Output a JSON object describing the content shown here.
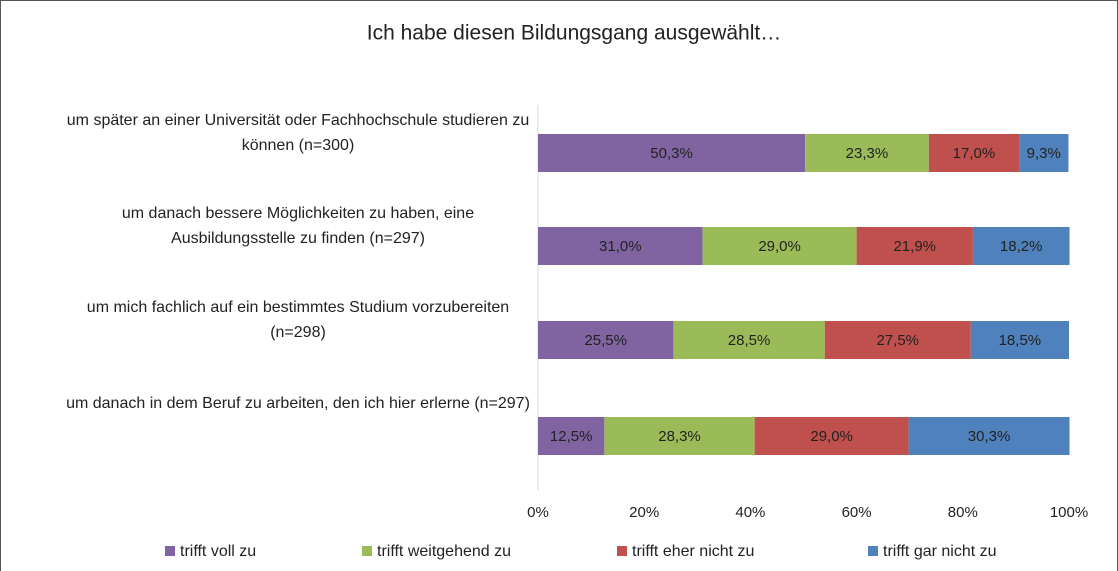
{
  "chart_data": {
    "type": "stacked_barh",
    "title": "Ich habe diesen Bildungsgang ausgewählt…",
    "categories": [
      "um später an einer Universität oder Fachhochschule studieren zu können (n=300)",
      "um danach bessere Möglichkeiten zu haben, eine Ausbildungsstelle zu finden (n=297)",
      "um mich fachlich auf ein bestimmtes Studium vorzubereiten (n=298)",
      "um danach in dem Beruf zu arbeiten, den ich hier erlerne (n=297)"
    ],
    "series": [
      {
        "name": "trifft voll zu",
        "color": "#8064a2",
        "values": [
          50.3,
          31.0,
          25.5,
          12.5
        ],
        "value_labels": [
          "50,3%",
          "31,0%",
          "25,5%",
          "12,5%"
        ]
      },
      {
        "name": "trifft weitgehend zu",
        "color": "#9bbb59",
        "values": [
          23.3,
          29.0,
          28.5,
          28.3
        ],
        "value_labels": [
          "23,3%",
          "29,0%",
          "28,5%",
          "28,3%"
        ]
      },
      {
        "name": "trifft eher nicht zu",
        "color": "#c0504d",
        "values": [
          17.0,
          21.9,
          27.5,
          29.0
        ],
        "value_labels": [
          "17,0%",
          "21,9%",
          "27,5%",
          "29,0%"
        ]
      },
      {
        "name": "trifft gar nicht zu",
        "color": "#4f81bd",
        "values": [
          9.3,
          18.2,
          18.5,
          30.3
        ],
        "value_labels": [
          "9,3%",
          "18,2%",
          "18,5%",
          "30,3%"
        ]
      }
    ],
    "xlim": [
      0,
      100
    ],
    "xticks": [
      {
        "value": 0,
        "label": "0%"
      },
      {
        "value": 20,
        "label": "20%"
      },
      {
        "value": 40,
        "label": "40%"
      },
      {
        "value": 60,
        "label": "60%"
      },
      {
        "value": 80,
        "label": "80%"
      },
      {
        "value": 100,
        "label": "100%"
      }
    ],
    "grid": false,
    "legend": "bottom"
  }
}
